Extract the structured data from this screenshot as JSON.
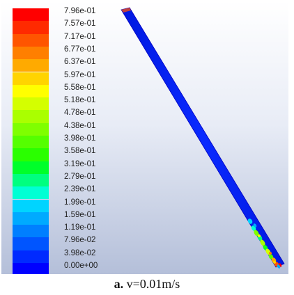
{
  "legend": {
    "labels": [
      "7.96e-01",
      "7.57e-01",
      "7.17e-01",
      "6.77e-01",
      "6.37e-01",
      "5.97e-01",
      "5.58e-01",
      "5.18e-01",
      "4.78e-01",
      "4.38e-01",
      "3.98e-01",
      "3.58e-01",
      "3.19e-01",
      "2.79e-01",
      "2.39e-01",
      "1.99e-01",
      "1.59e-01",
      "1.19e-01",
      "7.96e-02",
      "3.98e-02",
      "0.00e+00"
    ],
    "colors": [
      "#ff0000",
      "#ff2a00",
      "#ff5500",
      "#ff7f00",
      "#ffaa00",
      "#ffd400",
      "#ffff00",
      "#d4ff00",
      "#aaff00",
      "#7fff00",
      "#55ff00",
      "#2aff00",
      "#00ff2a",
      "#00ff7f",
      "#00ffd4",
      "#00d4ff",
      "#00aaff",
      "#007fff",
      "#0055ff",
      "#002aff",
      "#0000ff"
    ]
  },
  "contour": {
    "base_color": "#0a1eff",
    "edge_color": "#0000c0",
    "tip_top_color": "#c04040"
  },
  "caption": {
    "letter": "a.",
    "text": " v=0.01m/s"
  }
}
